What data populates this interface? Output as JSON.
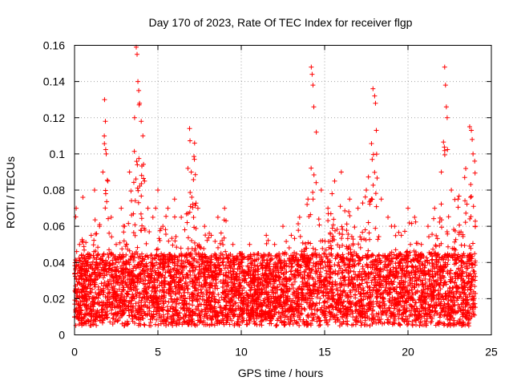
{
  "chart_data": {
    "type": "scatter",
    "title": "Day 170 of 2023, Rate Of TEC Index for receiver flgp",
    "xlabel": "GPS time / hours",
    "ylabel": "ROTI / TECUs",
    "xlim": [
      0,
      25
    ],
    "ylim": [
      0,
      0.16
    ],
    "xticks": [
      0,
      5,
      10,
      15,
      20,
      25
    ],
    "xtick_labels": [
      "0",
      "5",
      "10",
      "15",
      "20",
      "25"
    ],
    "yticks": [
      0,
      0.02,
      0.04,
      0.06,
      0.08,
      0.1,
      0.12,
      0.14,
      0.16
    ],
    "ytick_labels": [
      "0",
      "0.02",
      "0.04",
      "0.06",
      "0.08",
      "0.1",
      "0.12",
      "0.14",
      "0.16"
    ],
    "grid": true,
    "marker": "plus",
    "color": "#ff0000",
    "series": [
      {
        "name": "ROTI",
        "x": [
          0.1,
          0.3,
          0.5,
          0.8,
          1.0,
          1.2,
          1.5,
          1.7,
          1.8,
          1.85,
          1.9,
          2.0,
          2.2,
          2.5,
          2.8,
          3.0,
          3.3,
          3.6,
          3.7,
          3.75,
          3.8,
          3.85,
          3.9,
          4.0,
          4.1,
          4.2,
          4.4,
          4.7,
          5.0,
          5.3,
          5.6,
          6.0,
          6.4,
          6.8,
          6.9,
          7.0,
          7.2,
          7.4,
          7.8,
          8.2,
          8.6,
          9.0,
          9.5,
          10.0,
          10.5,
          11.0,
          11.5,
          12.0,
          12.5,
          13.0,
          13.5,
          14.0,
          14.2,
          14.25,
          14.3,
          14.35,
          14.5,
          14.8,
          15.2,
          15.6,
          16.0,
          16.5,
          17.0,
          17.5,
          17.9,
          18.0,
          18.05,
          18.1,
          18.4,
          18.8,
          19.2,
          19.6,
          20.0,
          20.4,
          20.8,
          21.2,
          21.6,
          22.0,
          22.2,
          22.25,
          22.3,
          22.35,
          22.6,
          23.0,
          23.4,
          23.7,
          23.8,
          23.85,
          23.9,
          24.0
        ],
        "y": [
          0.07,
          0.05,
          0.076,
          0.04,
          0.055,
          0.08,
          0.06,
          0.09,
          0.13,
          0.118,
          0.1,
          0.085,
          0.065,
          0.05,
          0.07,
          0.06,
          0.09,
          0.12,
          0.16,
          0.155,
          0.14,
          0.135,
          0.128,
          0.118,
          0.11,
          0.085,
          0.07,
          0.065,
          0.08,
          0.06,
          0.07,
          0.075,
          0.065,
          0.092,
          0.114,
          0.09,
          0.106,
          0.07,
          0.06,
          0.055,
          0.065,
          0.07,
          0.05,
          0.04,
          0.05,
          0.045,
          0.055,
          0.05,
          0.06,
          0.055,
          0.065,
          0.075,
          0.148,
          0.144,
          0.138,
          0.126,
          0.112,
          0.08,
          0.07,
          0.085,
          0.09,
          0.075,
          0.07,
          0.08,
          0.136,
          0.132,
          0.128,
          0.113,
          0.075,
          0.065,
          0.06,
          0.055,
          0.07,
          0.065,
          0.05,
          0.06,
          0.07,
          0.09,
          0.148,
          0.138,
          0.126,
          0.12,
          0.08,
          0.075,
          0.087,
          0.115,
          0.113,
          0.108,
          0.1,
          0.096
        ]
      }
    ],
    "note": "Dense cloud of points between roughly 0.005 and 0.05 TECUs across the full 0–24 h range, with envelope spikes as listed in series."
  }
}
